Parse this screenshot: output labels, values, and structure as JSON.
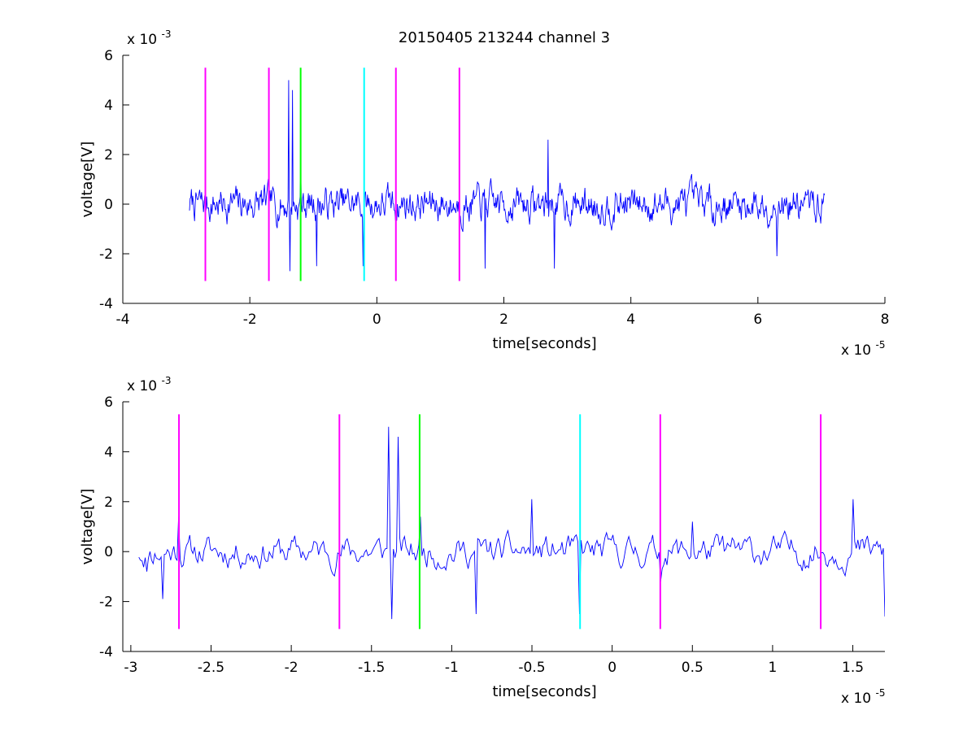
{
  "figure": {
    "title": "20150405 213244 channel 3"
  },
  "chart_data": [
    {
      "type": "line",
      "title": "20150405 213244 channel 3",
      "xlabel": "time[seconds]",
      "ylabel": "voltage[V]",
      "x_exponent_label": "x 10",
      "x_exponent": "-5",
      "y_exponent_label": "x 10",
      "y_exponent": "-3",
      "xlim": [
        -4e-05,
        8e-05
      ],
      "ylim": [
        -0.004,
        0.006
      ],
      "x_ticks": [
        -4e-05,
        -2e-05,
        0,
        2e-05,
        4e-05,
        6e-05,
        8e-05
      ],
      "x_tick_labels": [
        "-4",
        "-2",
        "0",
        "2",
        "4",
        "6",
        "8"
      ],
      "y_ticks": [
        -0.004,
        -0.002,
        0,
        0.002,
        0.004,
        0.006
      ],
      "y_tick_labels": [
        "-4",
        "-2",
        "0",
        "2",
        "4",
        "6"
      ],
      "grid": false,
      "series": [
        {
          "style": "noise-trace",
          "color": "#0000ff",
          "x_start": -2.95e-05,
          "x_end": 7.05e-05,
          "n_points": 1000,
          "amplitude": 0.0008,
          "seed": 7,
          "peaks": [
            {
              "x": -1.39e-05,
              "y": 0.005
            },
            {
              "x": -1.37e-05,
              "y": -0.0027
            },
            {
              "x": -1.33e-05,
              "y": 0.0046
            },
            {
              "x": -1.2e-05,
              "y": 0.0014
            },
            {
              "x": -9.5e-06,
              "y": -0.0025
            },
            {
              "x": -2.2e-06,
              "y": -0.0025
            },
            {
              "x": 1.7e-05,
              "y": -0.0026
            },
            {
              "x": 2.7e-05,
              "y": 0.0026
            },
            {
              "x": 2.8e-05,
              "y": -0.0026
            },
            {
              "x": 6.3e-05,
              "y": -0.0021
            }
          ]
        }
      ],
      "markers": [
        {
          "x": -2.7e-05,
          "y0": -0.0031,
          "y1": 0.0055,
          "color": "#ff00ff"
        },
        {
          "x": -1.7e-05,
          "y0": -0.0031,
          "y1": 0.0055,
          "color": "#ff00ff"
        },
        {
          "x": -1.2e-05,
          "y0": -0.0031,
          "y1": 0.0055,
          "color": "#00ff00"
        },
        {
          "x": -2e-06,
          "y0": -0.0031,
          "y1": 0.0055,
          "color": "#00ffff"
        },
        {
          "x": 3e-06,
          "y0": -0.0031,
          "y1": 0.0055,
          "color": "#ff00ff"
        },
        {
          "x": 1.3e-05,
          "y0": -0.0031,
          "y1": 0.0055,
          "color": "#ff00ff"
        }
      ]
    },
    {
      "type": "line",
      "title": "",
      "xlabel": "time[seconds]",
      "ylabel": "voltage[V]",
      "x_exponent_label": "x 10",
      "x_exponent": "-5",
      "y_exponent_label": "x 10",
      "y_exponent": "-3",
      "xlim": [
        -3.05e-05,
        1.7e-05
      ],
      "ylim": [
        -0.004,
        0.006
      ],
      "x_ticks": [
        -3e-05,
        -2.5e-05,
        -2e-05,
        -1.5e-05,
        -1e-05,
        -5e-06,
        0,
        5e-06,
        1e-05,
        1.5e-05
      ],
      "x_tick_labels": [
        "-3",
        "-2.5",
        "-2",
        "-1.5",
        "-1",
        "-0.5",
        "0",
        "0.5",
        "1",
        "1.5"
      ],
      "y_ticks": [
        -0.004,
        -0.002,
        0,
        0.002,
        0.004,
        0.006
      ],
      "y_tick_labels": [
        "-4",
        "-2",
        "0",
        "2",
        "4",
        "6"
      ],
      "grid": false,
      "series": [
        {
          "style": "noise-trace",
          "color": "#0000ff",
          "x_start": -2.95e-05,
          "x_end": 1.7e-05,
          "n_points": 470,
          "amplitude": 0.0007,
          "seed": 11,
          "peaks": [
            {
              "x": -2.9e-05,
              "y": -0.0008
            },
            {
              "x": -2.8e-05,
              "y": -0.0019
            },
            {
              "x": -2.7e-05,
              "y": 0.0014
            },
            {
              "x": -1.39e-05,
              "y": 0.005
            },
            {
              "x": -1.37e-05,
              "y": -0.0027
            },
            {
              "x": -1.33e-05,
              "y": 0.0046
            },
            {
              "x": -1.2e-05,
              "y": 0.0014
            },
            {
              "x": -8.5e-06,
              "y": -0.0025
            },
            {
              "x": -5e-06,
              "y": 0.0021
            },
            {
              "x": -2e-06,
              "y": -0.0025
            },
            {
              "x": 3e-06,
              "y": -0.0012
            },
            {
              "x": 5e-06,
              "y": 0.0012
            },
            {
              "x": 1.5e-05,
              "y": 0.0021
            },
            {
              "x": 1.7e-05,
              "y": -0.0026
            }
          ]
        }
      ],
      "markers": [
        {
          "x": -2.7e-05,
          "y0": -0.0031,
          "y1": 0.0055,
          "color": "#ff00ff"
        },
        {
          "x": -1.7e-05,
          "y0": -0.0031,
          "y1": 0.0055,
          "color": "#ff00ff"
        },
        {
          "x": -1.2e-05,
          "y0": -0.0031,
          "y1": 0.0055,
          "color": "#00ff00"
        },
        {
          "x": -2e-06,
          "y0": -0.0031,
          "y1": 0.0055,
          "color": "#00ffff"
        },
        {
          "x": 3e-06,
          "y0": -0.0031,
          "y1": 0.0055,
          "color": "#ff00ff"
        },
        {
          "x": 1.3e-05,
          "y0": -0.0031,
          "y1": 0.0055,
          "color": "#ff00ff"
        }
      ]
    }
  ]
}
